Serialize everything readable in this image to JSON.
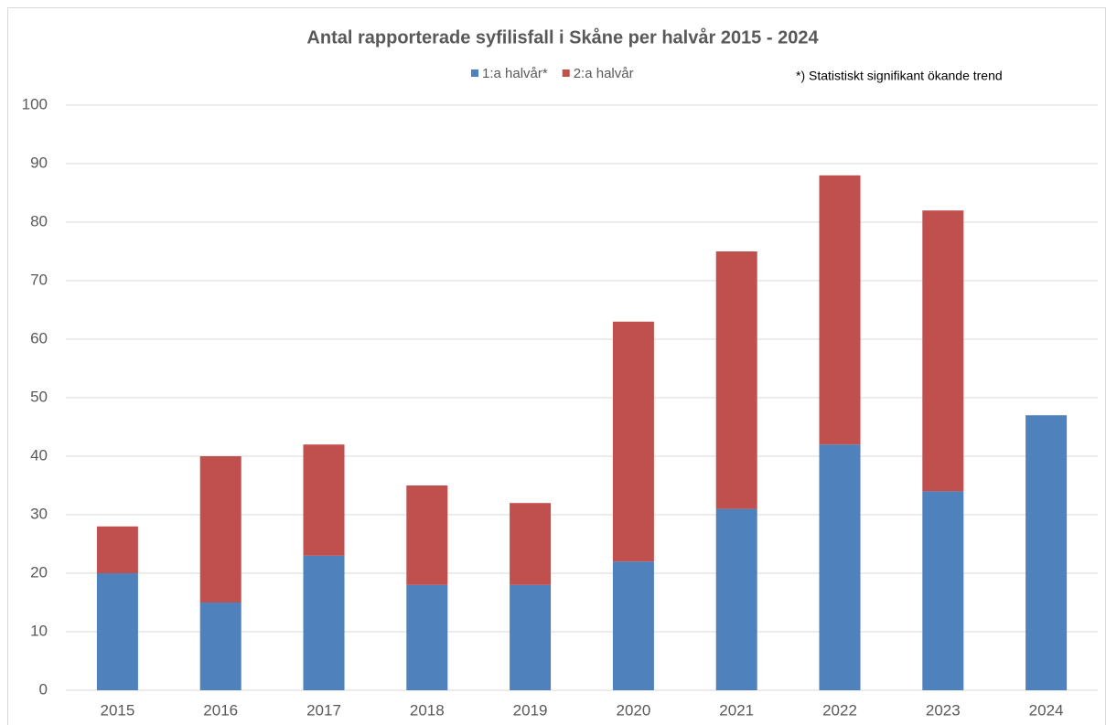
{
  "chart_data": {
    "type": "stacked_bar",
    "title": "Antal rapporterade syfilisfall i Skåne per halvår 2015 - 2024",
    "annotation": "*) Statistiskt signifikant ökande trend",
    "categories": [
      "2015",
      "2016",
      "2017",
      "2018",
      "2019",
      "2020",
      "2021",
      "2022",
      "2023",
      "2024"
    ],
    "series": [
      {
        "name": "1:a halvår*",
        "color": "#4f81bd",
        "values": [
          20,
          15,
          23,
          18,
          18,
          22,
          31,
          42,
          34,
          47
        ]
      },
      {
        "name": "2:a halvår",
        "color": "#c0504d",
        "values": [
          8,
          25,
          19,
          17,
          14,
          41,
          44,
          46,
          48,
          null
        ]
      }
    ],
    "ylim": [
      0,
      100
    ],
    "yticks": [
      0,
      10,
      20,
      30,
      40,
      50,
      60,
      70,
      80,
      90,
      100
    ],
    "grid": true
  }
}
